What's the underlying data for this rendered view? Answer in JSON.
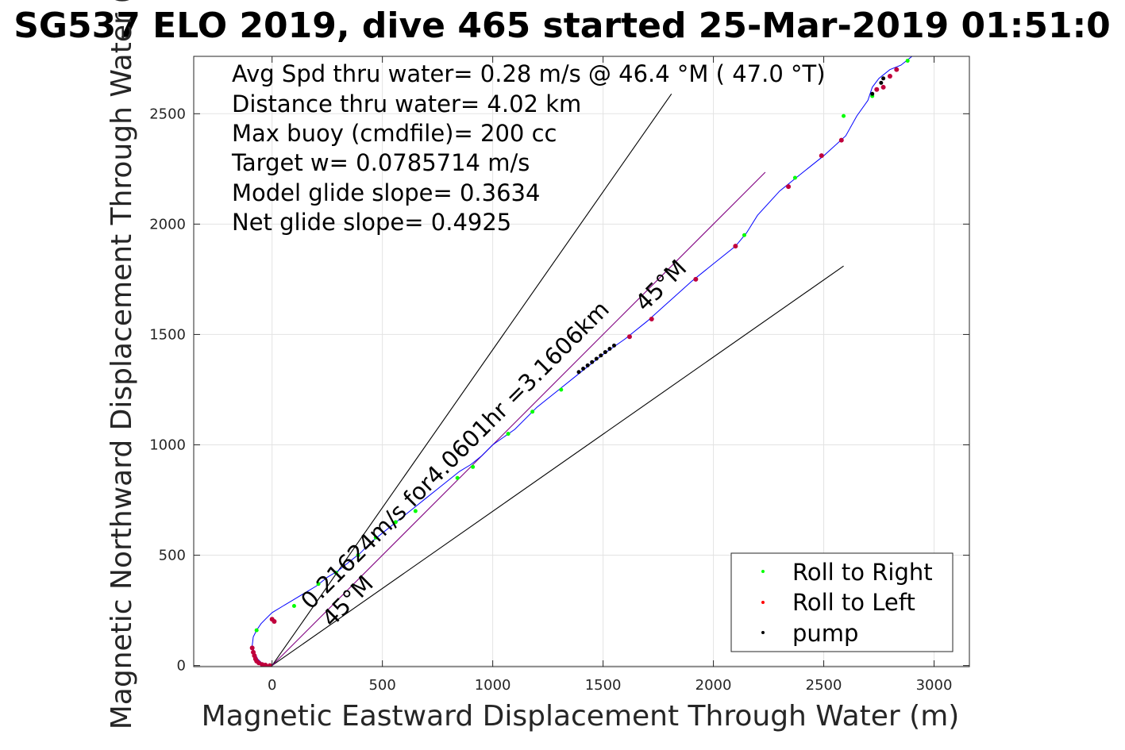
{
  "chart_data": {
    "type": "scatter",
    "title": "SG537 ELO 2019, dive 465 started 25-Mar-2019 01:51:0",
    "xlabel": "Magnetic Eastward Displacement Through Water (m)",
    "ylabel": "Magnetic Northward Displacement Through Water (",
    "xlim": [
      -355,
      3160
    ],
    "ylim": [
      -5,
      2760
    ],
    "xticks": [
      0,
      500,
      1000,
      1500,
      2000,
      2500,
      3000
    ],
    "yticks": [
      0,
      500,
      1000,
      1500,
      2000,
      2500
    ],
    "grid": true,
    "legend_position": "bottom-right",
    "stats_lines": [
      "Avg Spd thru water=  0.28 m/s @  46.4 °M ( 47.0 °T)",
      "Distance thru water=  4.02 km",
      "Max buoy (cmdfile)= 200 cc",
      "Target w= 0.0785714 m/s",
      "Model glide slope= 0.3634",
      "Net glide slope= 0.4925"
    ],
    "track": {
      "color": "#0000ff",
      "x": [
        0,
        -20,
        -45,
        -65,
        -80,
        -90,
        -85,
        -70,
        -50,
        -30,
        0,
        50,
        100,
        150,
        200,
        250,
        300,
        350,
        400,
        450,
        500,
        550,
        600,
        650,
        700,
        750,
        800,
        850,
        900,
        950,
        1000,
        1100,
        1200,
        1300,
        1400,
        1500,
        1600,
        1700,
        1800,
        1900,
        2000,
        2100,
        2150,
        2200,
        2300,
        2400,
        2500,
        2600,
        2650,
        2700,
        2720,
        2750,
        2800,
        2850,
        2900
      ],
      "y": [
        0,
        0,
        10,
        30,
        60,
        90,
        130,
        160,
        190,
        210,
        240,
        270,
        300,
        330,
        360,
        400,
        430,
        470,
        510,
        560,
        600,
        640,
        680,
        720,
        760,
        800,
        840,
        880,
        910,
        950,
        1000,
        1070,
        1170,
        1250,
        1330,
        1410,
        1480,
        1560,
        1650,
        1740,
        1820,
        1900,
        1960,
        2040,
        2150,
        2230,
        2310,
        2400,
        2490,
        2560,
        2620,
        2660,
        2700,
        2720,
        2760
      ]
    },
    "series": [
      {
        "name": "Roll to Right",
        "color": "#00ff00",
        "x": [
          -70,
          100,
          210,
          290,
          390,
          470,
          560,
          650,
          840,
          910,
          1070,
          1180,
          1310,
          2140,
          2370,
          2590,
          2720,
          2880
        ],
        "y": [
          160,
          270,
          370,
          420,
          500,
          580,
          650,
          700,
          850,
          900,
          1050,
          1150,
          1250,
          1950,
          2210,
          2490,
          2580,
          2740
        ]
      },
      {
        "name": "Roll to Left",
        "color": "#ff0000",
        "x": [
          -90,
          -85,
          -80,
          -75,
          -70,
          -60,
          -45,
          -30,
          -10,
          10,
          0,
          1620,
          1720,
          1920,
          2100,
          2340,
          2490,
          2580,
          2740,
          2770,
          2800,
          2830
        ],
        "y": [
          80,
          60,
          45,
          30,
          20,
          12,
          5,
          2,
          0,
          200,
          210,
          1490,
          1570,
          1750,
          1900,
          2170,
          2310,
          2380,
          2610,
          2620,
          2670,
          2700
        ]
      },
      {
        "name": "pump",
        "color": "#000000",
        "x": [
          1390,
          1410,
          1430,
          1450,
          1470,
          1490,
          1510,
          1530,
          1550,
          2760,
          2770,
          2720
        ],
        "y": [
          1330,
          1345,
          1360,
          1375,
          1390,
          1405,
          1420,
          1435,
          1450,
          2640,
          2660,
          2590
        ]
      }
    ],
    "lines": [
      {
        "color": "#000000",
        "x": [
          0,
          1810
        ],
        "y": [
          0,
          2590
        ]
      },
      {
        "color": "#000000",
        "x": [
          0,
          2590
        ],
        "y": [
          0,
          1810
        ]
      },
      {
        "color": "#800080",
        "x": [
          0,
          2235
        ],
        "y": [
          0,
          2235
        ]
      }
    ],
    "annotations": [
      {
        "text": "0.21624m/s for4.0601hr =3.1606km",
        "x": 175,
        "y": 250,
        "angle": 45
      },
      {
        "text": "45°M",
        "x": 1690,
        "y": 1600,
        "angle": 45
      },
      {
        "text": "45°M",
        "x": 270,
        "y": 170,
        "angle": 45
      }
    ]
  }
}
